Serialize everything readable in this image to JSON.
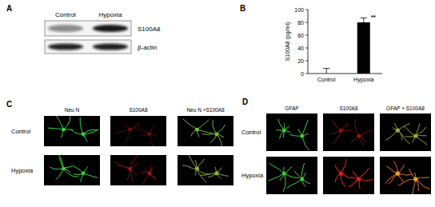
{
  "panel_labels": [
    "A",
    "B",
    "C",
    "D"
  ],
  "blot": {
    "columns": [
      "Control",
      "Hypoxia"
    ],
    "rows": [
      "S100A8",
      "β-actin"
    ]
  },
  "chart_data": {
    "type": "bar",
    "categories": [
      "Control",
      "Hypoxia"
    ],
    "values": [
      0,
      80
    ],
    "errors": [
      8,
      7
    ],
    "y_label": "S100A8 (pg/ml)",
    "ylim": [
      0,
      100
    ],
    "yticks": [
      0,
      20,
      40,
      60,
      80,
      100
    ],
    "color": "#000000",
    "annotations": [
      {
        "category": "Hypoxia",
        "text": "**"
      }
    ]
  },
  "micrographs": [
    {
      "columns": [
        "Neu N",
        "S100A8",
        "Neu N +S100A8"
      ],
      "rows": [
        "Control",
        "Hypoxia"
      ]
    },
    {
      "columns": [
        "GFAP",
        "S100A8",
        "GFAP + S100A8"
      ],
      "rows": [
        "Control",
        "Hypoxia"
      ]
    }
  ]
}
